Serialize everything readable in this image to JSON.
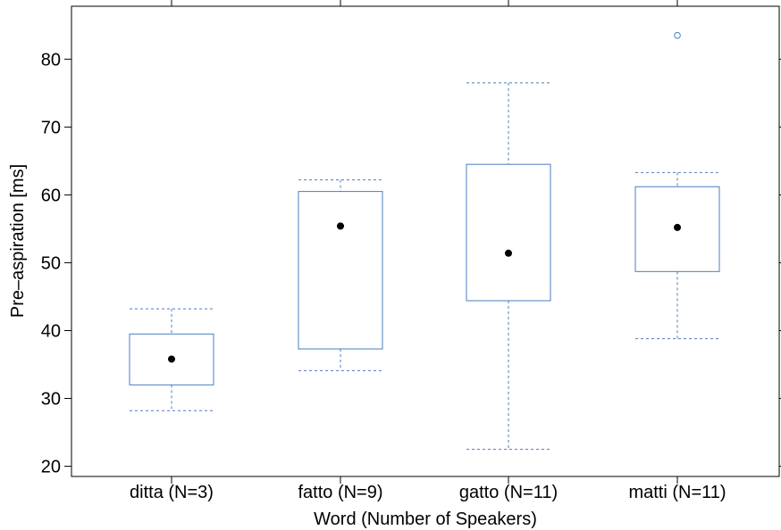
{
  "chart_data": {
    "type": "box",
    "xlabel": "Word (Number of Speakers)",
    "ylabel": "Pre–aspiration [ms]",
    "ylim": [
      18.5,
      87.8
    ],
    "yticks": [
      20,
      30,
      40,
      50,
      60,
      70,
      80
    ],
    "categories": [
      "ditta (N=3)",
      "fatto (N=9)",
      "gatto (N=11)",
      "matti (N=11)"
    ],
    "boxes": [
      {
        "category": "ditta (N=3)",
        "whisker_low": 28.2,
        "q1": 32.0,
        "median": 35.8,
        "q3": 39.5,
        "whisker_high": 43.2,
        "outliers": []
      },
      {
        "category": "fatto (N=9)",
        "whisker_low": 34.1,
        "q1": 37.3,
        "median": 55.4,
        "q3": 60.5,
        "whisker_high": 62.2,
        "outliers": []
      },
      {
        "category": "gatto (N=11)",
        "whisker_low": 22.5,
        "q1": 44.4,
        "median": 51.4,
        "q3": 64.5,
        "whisker_high": 76.5,
        "outliers": []
      },
      {
        "category": "matti (N=11)",
        "whisker_low": 38.8,
        "q1": 48.7,
        "median": 55.2,
        "q3": 61.2,
        "whisker_high": 63.3,
        "outliers": [
          83.5
        ]
      }
    ],
    "grid": false,
    "colors": {
      "box": "#4a7cc0",
      "median": "#000000",
      "frame": "#000000"
    }
  }
}
